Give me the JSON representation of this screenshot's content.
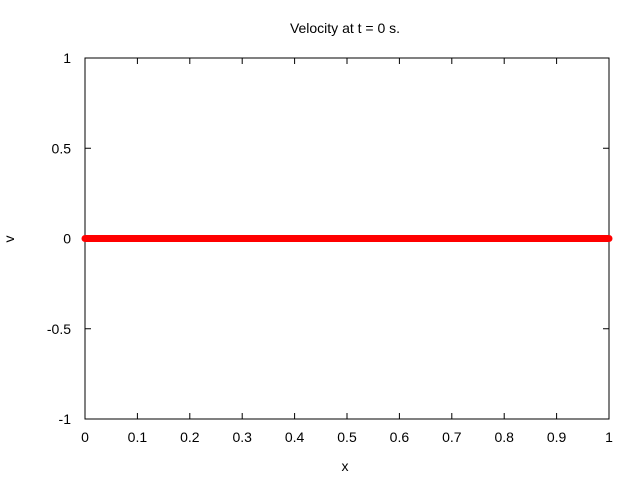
{
  "chart_data": {
    "type": "line",
    "title": "Velocity at t = 0 s.",
    "xlabel": "x",
    "ylabel": "v",
    "xlim": [
      0,
      1
    ],
    "ylim": [
      -1,
      1
    ],
    "x_ticks": [
      "0",
      "0.1",
      "0.2",
      "0.3",
      "0.4",
      "0.5",
      "0.6",
      "0.7",
      "0.8",
      "0.9",
      "1"
    ],
    "y_ticks": [
      "1",
      "0.5",
      "0",
      "-0.5",
      "-1"
    ],
    "grid": false,
    "series": [
      {
        "color": "#ff0000",
        "x": [
          0,
          0.1,
          0.2,
          0.3,
          0.4,
          0.5,
          0.6,
          0.7,
          0.8,
          0.9,
          1
        ],
        "y": [
          0,
          0,
          0,
          0,
          0,
          0,
          0,
          0,
          0,
          0,
          0
        ]
      }
    ]
  }
}
